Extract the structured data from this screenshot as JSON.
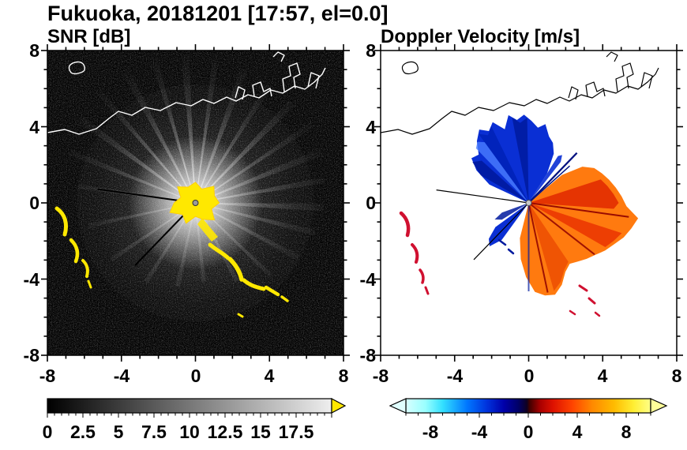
{
  "title": "Fukuoka, 20181201 [17:57, el=0.0]",
  "panels": {
    "snr": {
      "title": "SNR [dB]"
    },
    "doppler": {
      "title": "Doppler Velocity [m/s]"
    }
  },
  "axes": {
    "x_ticks": [
      "-8",
      "-4",
      "0",
      "4",
      "8"
    ],
    "y_ticks": [
      "8",
      "4",
      "0",
      "-4",
      "-8"
    ]
  },
  "colorbars": {
    "snr": {
      "tick_labels": [
        "0",
        "2.5",
        "5",
        "7.5",
        "10",
        "12.5",
        "15",
        "17.5"
      ]
    },
    "doppler": {
      "tick_labels": [
        "-8",
        "-4",
        "0",
        "4",
        "8"
      ]
    }
  },
  "colors": {
    "figure_background": "#ffffff",
    "snr_panel_background": "#000000",
    "snr_saturated": "#ffe800",
    "doppler_negative_blue": "#0a2fd4",
    "doppler_positive_orange": "#ff7a0f",
    "coastline_left": "#ffffff",
    "coastline_right": "#000000"
  },
  "chart_data": [
    {
      "type": "heatmap",
      "panel": "left",
      "title": "SNR [dB]",
      "xlabel": "",
      "ylabel": "",
      "xlim": [
        -8,
        8
      ],
      "ylim": [
        -8,
        8
      ],
      "x_ticks": [
        -8,
        -4,
        0,
        4,
        8
      ],
      "y_ticks": [
        -8,
        -4,
        0,
        4,
        8
      ],
      "minor_tick_interval": 1,
      "grid": false,
      "background_value": "no-echo (black with faint gray noise speckle)",
      "colorbar": {
        "orientation": "horizontal",
        "range": [
          0,
          20
        ],
        "tick_labels": [
          0,
          2.5,
          5,
          7.5,
          10,
          12.5,
          15,
          17.5
        ],
        "minor_tick_interval": 0.5,
        "colormap": "grayscale black-to-white",
        "over_range_arrow_color": "#ffe800"
      },
      "features": [
        {
          "name": "radar-site-echo-core",
          "center": [
            0,
            0
          ],
          "radius": 1.3,
          "value": "saturated yellow (> top of scale)"
        },
        {
          "name": "radial-beam-streaks",
          "description": "white/gray rays emanating from origin out to ~8 km in nearly all azimuths, roughly 3-12 dB"
        },
        {
          "name": "blocked-beams",
          "description": "two thin dark rays from origin toward WNW and SW"
        },
        {
          "name": "coastal-clutter",
          "description": "yellow saturated arcs near (-7.5,-2.7) and (-6.6,-3.6), plus a chain from about (1,-2.5) to (4,-4.5)"
        },
        {
          "name": "coastline",
          "description": "white coastline trace crossing between y=3 and y=6, harbor structures near (2.5,5)-(4.5,6.5), small island near (-6.5,6.8)"
        }
      ]
    },
    {
      "type": "heatmap",
      "panel": "right",
      "title": "Doppler Velocity [m/s]",
      "xlabel": "",
      "ylabel": "",
      "xlim": [
        -8,
        8
      ],
      "ylim": [
        -8,
        8
      ],
      "x_ticks": [
        -8,
        -4,
        0,
        4,
        8
      ],
      "y_ticks": [
        -8,
        -4,
        0,
        4,
        8
      ],
      "minor_tick_interval": 1,
      "grid": false,
      "background_value": "no data (white)",
      "colorbar": {
        "orientation": "horizontal",
        "range": [
          -10,
          10
        ],
        "tick_labels": [
          -8,
          -4,
          0,
          4,
          8
        ],
        "minor_tick_interval": 1,
        "colormap": "diverging cyan-blue-black-red-orange-yellow",
        "under_range_arrow_color": "#d8ffff",
        "over_range_arrow_color": "#ffff99"
      },
      "features": [
        {
          "name": "negative-velocity-fan",
          "description": "blue fan (about -8 to -2 m/s) from north through west-northwest of origin, radius up to ~4.5 km"
        },
        {
          "name": "positive-velocity-fan",
          "description": "red-orange fan (about +1 to +6 m/s) from east-northeast through south of origin, radius up to ~5.5 km"
        },
        {
          "name": "small-negative-wedge",
          "description": "blue wedge southwest of origin, radius ~3 km"
        },
        {
          "name": "blocked-beams",
          "description": "thin black rays from origin toward WNW and SW"
        },
        {
          "name": "coastal-clutter",
          "description": "scattered red arcs near (-7.4,-2.7) and (-6.8,-3.6); mixed specks near (3,-4.5)"
        },
        {
          "name": "coastline",
          "description": "thin black coastline trace, same shape as left panel"
        }
      ]
    }
  ]
}
